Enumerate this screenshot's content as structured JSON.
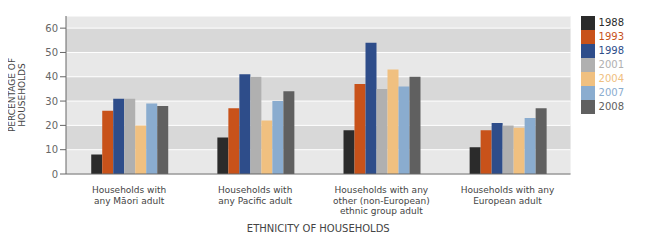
{
  "chart_data": {
    "type": "bar",
    "categories": [
      "Households with\nany Māori adult",
      "Households with\nany Pacific adult",
      "Households with any\nother (non-European)\nethnic group adult",
      "Households with any\nEuropean adult"
    ],
    "series": [
      {
        "name": "1988",
        "color": "#2b2b2b",
        "values": [
          8,
          15,
          18,
          11
        ]
      },
      {
        "name": "1993",
        "color": "#c8521a",
        "values": [
          26,
          27,
          37,
          18
        ]
      },
      {
        "name": "1998",
        "color": "#2e4d8a",
        "values": [
          31,
          41,
          54,
          21
        ]
      },
      {
        "name": "2001",
        "color": "#b0b0b0",
        "values": [
          31,
          40,
          35,
          20
        ]
      },
      {
        "name": "2004",
        "color": "#f0c080",
        "values": [
          20,
          22,
          43,
          19
        ]
      },
      {
        "name": "2007",
        "color": "#8aaccf",
        "values": [
          29,
          30,
          36,
          23
        ]
      },
      {
        "name": "2008",
        "color": "#606060",
        "values": [
          28,
          34,
          40,
          27
        ]
      }
    ],
    "xlabel": "ETHNICITY OF HOUSEHOLDS",
    "ylabel": "PERCENTAGE OF\nHOUSEHOLDS",
    "ylim": [
      0,
      65
    ],
    "yticks": [
      0,
      10,
      20,
      30,
      40,
      50,
      60
    ],
    "grid": true,
    "legend": "upper right"
  }
}
